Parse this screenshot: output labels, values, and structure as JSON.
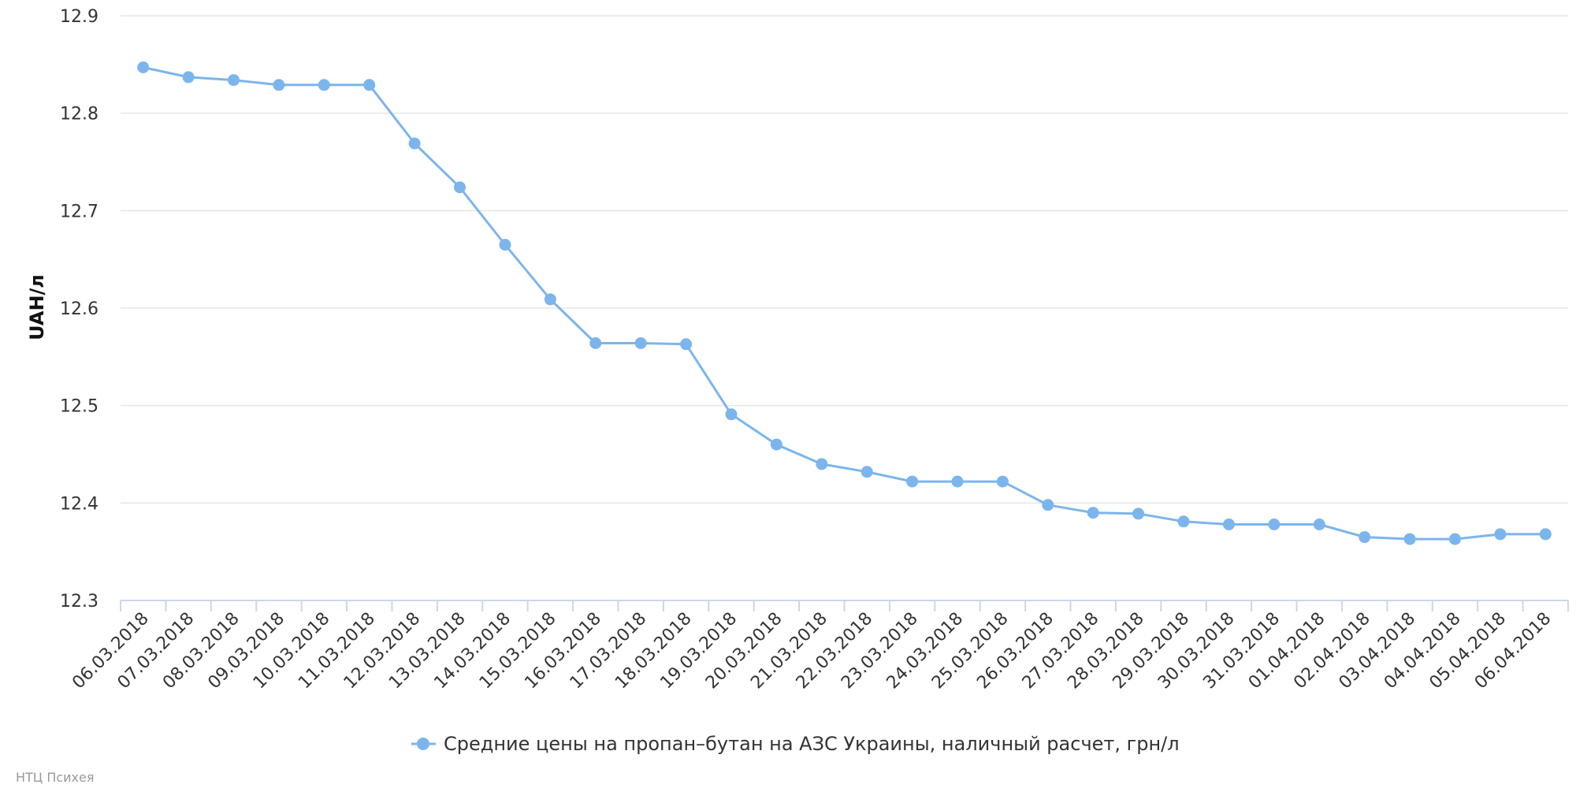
{
  "chart_data": {
    "type": "line",
    "ylabel": "UAH/л",
    "ylim": [
      12.3,
      12.9
    ],
    "yticks": [
      "12.3",
      "12.4",
      "12.5",
      "12.6",
      "12.7",
      "12.8",
      "12.9"
    ],
    "grid": true,
    "legend_position": "bottom-center",
    "categories": [
      "06.03.2018",
      "07.03.2018",
      "08.03.2018",
      "09.03.2018",
      "10.03.2018",
      "11.03.2018",
      "12.03.2018",
      "13.03.2018",
      "14.03.2018",
      "15.03.2018",
      "16.03.2018",
      "17.03.2018",
      "18.03.2018",
      "19.03.2018",
      "20.03.2018",
      "21.03.2018",
      "22.03.2018",
      "23.03.2018",
      "24.03.2018",
      "25.03.2018",
      "26.03.2018",
      "27.03.2018",
      "28.03.2018",
      "29.03.2018",
      "30.03.2018",
      "31.03.2018",
      "01.04.2018",
      "02.04.2018",
      "03.04.2018",
      "04.04.2018",
      "05.04.2018",
      "06.04.2018"
    ],
    "series": [
      {
        "name": "Средние цены на пропан–бутан на АЗС Украины, наличный расчет, грн/л",
        "color": "#7cb5ec",
        "values": [
          12.847,
          12.837,
          12.834,
          12.829,
          12.829,
          12.829,
          12.769,
          12.724,
          12.665,
          12.609,
          12.564,
          12.564,
          12.563,
          12.491,
          12.46,
          12.44,
          12.432,
          12.422,
          12.422,
          12.422,
          12.398,
          12.39,
          12.389,
          12.381,
          12.378,
          12.378,
          12.378,
          12.365,
          12.363,
          12.363,
          12.368,
          12.368
        ]
      }
    ]
  },
  "credits": "НТЦ Психея"
}
